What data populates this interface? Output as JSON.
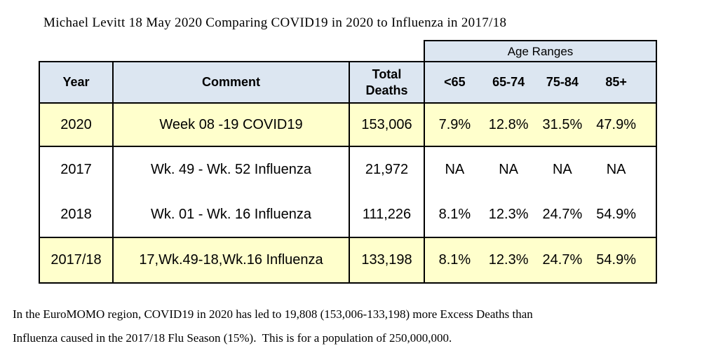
{
  "title": "Michael Levitt 18 May 2020 Comparing COVID19 in 2020 to Influenza in 2017/18",
  "table": {
    "age_ranges_label": "Age Ranges",
    "headers": {
      "year": "Year",
      "comment": "Comment",
      "total_deaths": "Total Deaths"
    },
    "age_headers": [
      "<65",
      "65-74",
      "75-84",
      "85+"
    ],
    "rows": [
      {
        "year": "2020",
        "comment": "Week 08 -19 COVID19",
        "total": "153,006",
        "ages": [
          "7.9%",
          "12.8%",
          "31.5%",
          "47.9%"
        ],
        "highlighted": true
      },
      {
        "year": "2017",
        "comment": "Wk. 49 - Wk. 52 Influenza",
        "total": "21,972",
        "ages": [
          "NA",
          "NA",
          "NA",
          "NA"
        ],
        "highlighted": false
      },
      {
        "year": "2018",
        "comment": "Wk. 01 - Wk. 16 Influenza",
        "total": "111,226",
        "ages": [
          "8.1%",
          "12.3%",
          "24.7%",
          "54.9%"
        ],
        "highlighted": false
      },
      {
        "year": "2017/18",
        "comment": "17,Wk.49-18,Wk.16 Influenza",
        "total": "133,198",
        "ages": [
          "8.1%",
          "12.3%",
          "24.7%",
          "54.9%"
        ],
        "highlighted": true
      }
    ]
  },
  "footnote": {
    "line1": "In the EuroMOMO region, COVID19 in 2020 has led to 19,808 (153,006-133,198) more Excess Deaths than",
    "line2": "Influenza caused in the 2017/18 Flu Season (15%).  This is for a population of 250,000,000."
  },
  "colors": {
    "header_bg": "#dce6f1",
    "highlight_bg": "#ffffcc",
    "border": "#000000",
    "background": "#ffffff"
  }
}
